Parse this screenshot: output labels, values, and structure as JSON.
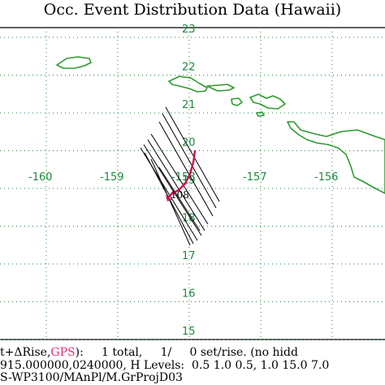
{
  "title": "Occ. Event Distribution Data (Hawaii)",
  "grid": {
    "longitudes": [
      -160,
      -159,
      -158,
      -157,
      -156
    ],
    "latitudes": [
      15,
      16,
      17,
      18,
      19,
      20,
      21,
      22,
      23
    ],
    "longitude_labels": [
      "-160",
      "-159",
      "-158",
      "-157",
      "-156"
    ],
    "latitude_labels": [
      "15",
      "16",
      "17",
      "18",
      "19",
      "20",
      "21",
      "22",
      "23"
    ],
    "line_color": "#1a8a3a",
    "line_style": "dotted"
  },
  "coastline_color": "#2e9a2e",
  "track_color": "#cc1155",
  "event_label": "108",
  "footer": {
    "line1_prefix": "t+ΔRise,",
    "line1_gps": "GPS",
    "line1_rest": "):     1 total,     1/     0 set/rise. (no hidd",
    "line2": "915.000000,0240000, H Levels:  0.5 1.0 0.5, 1.0 15.0 7.0",
    "line3": "S-WP3100/MAnPl/M.GrProjD03"
  }
}
